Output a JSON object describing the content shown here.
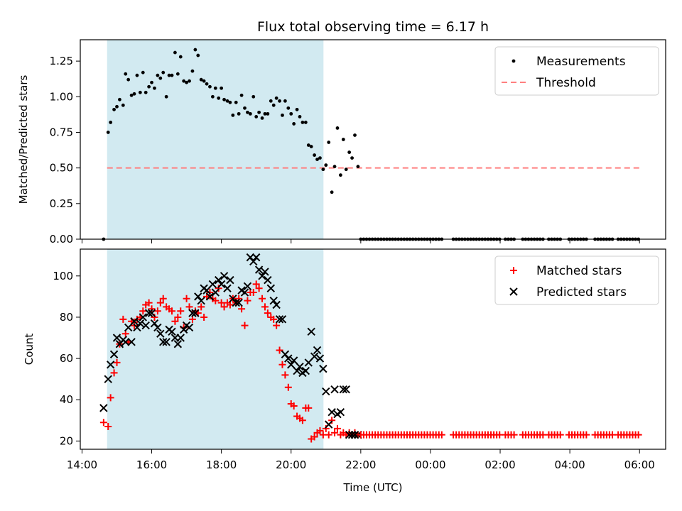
{
  "chart_data": {
    "type": "scatter",
    "title": "Flux total observing time = 6.17 h",
    "xlabel": "Time (UTC)",
    "x_unit": "hours",
    "x_ticks": [
      {
        "value": 14,
        "label": "14:00"
      },
      {
        "value": 16,
        "label": "16:00"
      },
      {
        "value": 18,
        "label": "18:00"
      },
      {
        "value": 20,
        "label": "20:00"
      },
      {
        "value": 22,
        "label": "22:00"
      },
      {
        "value": 24,
        "label": "00:00"
      },
      {
        "value": 26,
        "label": "02:00"
      },
      {
        "value": 28,
        "label": "04:00"
      },
      {
        "value": 30,
        "label": "06:00"
      }
    ],
    "xlim": [
      13.95,
      30.75
    ],
    "shaded_span": {
      "start": 14.72,
      "end": 20.93,
      "color": "#add8e6"
    },
    "colors": {
      "measurements": "#000000",
      "threshold": "#ff7f7f",
      "matched": "#ff0000",
      "predicted": "#000000"
    },
    "panels": [
      {
        "ylabel": "Matched/Predicted stars",
        "ylim": [
          0,
          1.4
        ],
        "y_ticks": [
          {
            "value": 0,
            "label": "0.00"
          },
          {
            "value": 0.25,
            "label": "0.25"
          },
          {
            "value": 0.5,
            "label": "0.50"
          },
          {
            "value": 0.75,
            "label": "0.75"
          },
          {
            "value": 1.0,
            "label": "1.00"
          },
          {
            "value": 1.25,
            "label": "1.25"
          }
        ],
        "legend": {
          "position": "top-right"
        },
        "series": [
          {
            "name": "Measurements",
            "marker": "dot",
            "x": [
              14.62,
              14.75,
              14.82,
              14.92,
              15.0,
              15.08,
              15.18,
              15.25,
              15.33,
              15.42,
              15.5,
              15.58,
              15.67,
              15.75,
              15.83,
              15.92,
              16.0,
              16.08,
              16.17,
              16.25,
              16.33,
              16.42,
              16.5,
              16.58,
              16.67,
              16.75,
              16.83,
              16.92,
              17.0,
              17.08,
              17.17,
              17.25,
              17.33,
              17.42,
              17.5,
              17.58,
              17.67,
              17.75,
              17.83,
              17.92,
              18.0,
              18.08,
              18.17,
              18.25,
              18.33,
              18.42,
              18.5,
              18.58,
              18.67,
              18.75,
              18.83,
              18.92,
              19.0,
              19.08,
              19.17,
              19.25,
              19.33,
              19.42,
              19.5,
              19.58,
              19.67,
              19.75,
              19.83,
              19.92,
              20.0,
              20.08,
              20.17,
              20.25,
              20.33,
              20.42,
              20.5,
              20.58,
              20.67,
              20.75,
              20.83,
              20.92,
              21.0,
              21.08,
              21.17,
              21.25,
              21.33,
              21.42,
              21.5,
              21.58,
              21.67,
              21.75,
              21.83,
              21.92
            ],
            "values": [
              0.0,
              0.75,
              0.82,
              0.91,
              0.93,
              0.98,
              0.94,
              1.16,
              1.12,
              1.01,
              1.02,
              1.15,
              1.03,
              1.17,
              1.03,
              1.07,
              1.1,
              1.06,
              1.15,
              1.13,
              1.17,
              1.0,
              1.15,
              1.15,
              1.31,
              1.16,
              1.28,
              1.11,
              1.1,
              1.11,
              1.18,
              1.33,
              1.29,
              1.12,
              1.11,
              1.09,
              1.07,
              1.0,
              1.06,
              0.99,
              1.06,
              0.98,
              0.97,
              0.96,
              0.87,
              0.96,
              0.88,
              1.01,
              0.92,
              0.89,
              0.88,
              1.0,
              0.86,
              0.89,
              0.85,
              0.88,
              0.88,
              0.97,
              0.94,
              0.99,
              0.97,
              0.87,
              0.97,
              0.92,
              0.88,
              0.81,
              0.91,
              0.86,
              0.82,
              0.82,
              0.66,
              0.65,
              0.59,
              0.56,
              0.57,
              0.49,
              0.52,
              0.68,
              0.33,
              0.51,
              0.78,
              0.45,
              0.7,
              0.49,
              0.61,
              0.57,
              0.73,
              0.51
            ]
          },
          {
            "name": "Threshold",
            "marker": "dashed-line",
            "x": [
              14.72,
              30.0
            ],
            "values": [
              0.5,
              0.5
            ]
          }
        ],
        "zero_marks": {
          "from": 22.0,
          "to": 30.0,
          "step": 0.083,
          "gaps": [
            [
              24.35,
              24.6
            ],
            [
              26.0,
              26.1
            ],
            [
              26.45,
              26.6
            ],
            [
              27.25,
              27.35
            ],
            [
              27.75,
              27.95
            ],
            [
              28.55,
              28.65
            ],
            [
              29.25,
              29.35
            ]
          ]
        }
      },
      {
        "ylabel": "Count",
        "ylim": [
          16,
          113
        ],
        "y_ticks": [
          {
            "value": 20,
            "label": "20"
          },
          {
            "value": 40,
            "label": "40"
          },
          {
            "value": 60,
            "label": "60"
          },
          {
            "value": 80,
            "label": "80"
          },
          {
            "value": 100,
            "label": "100"
          }
        ],
        "legend": {
          "position": "top-right"
        },
        "series": [
          {
            "name": "Matched stars",
            "marker": "plus",
            "x": [
              14.62,
              14.75,
              14.82,
              14.92,
              15.0,
              15.08,
              15.18,
              15.25,
              15.33,
              15.42,
              15.5,
              15.58,
              15.67,
              15.75,
              15.83,
              15.92,
              16.0,
              16.08,
              16.17,
              16.25,
              16.33,
              16.42,
              16.5,
              16.58,
              16.67,
              16.75,
              16.83,
              16.92,
              17.0,
              17.08,
              17.17,
              17.25,
              17.33,
              17.42,
              17.5,
              17.58,
              17.67,
              17.75,
              17.83,
              17.92,
              18.0,
              18.08,
              18.17,
              18.25,
              18.33,
              18.42,
              18.5,
              18.58,
              18.67,
              18.75,
              18.83,
              18.92,
              19.0,
              19.08,
              19.17,
              19.25,
              19.33,
              19.42,
              19.5,
              19.58,
              19.67,
              19.75,
              19.83,
              19.92,
              20.0,
              20.08,
              20.17,
              20.25,
              20.33,
              20.42,
              20.5,
              20.58,
              20.67,
              20.75,
              20.83,
              20.92,
              21.0,
              21.08,
              21.17,
              21.25,
              21.33,
              21.42,
              21.5,
              21.58,
              21.67,
              21.75,
              21.83,
              21.92
            ],
            "values": [
              29,
              27,
              41,
              53,
              58,
              67,
              79,
              72,
              68,
              78,
              76,
              79,
              80,
              83,
              86,
              87,
              84,
              80,
              83,
              87,
              89,
              85,
              84,
              83,
              78,
              80,
              83,
              75,
              89,
              85,
              79,
              83,
              82,
              85,
              80,
              90,
              92,
              89,
              88,
              94,
              87,
              85,
              87,
              86,
              89,
              87,
              89,
              84,
              76,
              88,
              92,
              92,
              96,
              94,
              89,
              85,
              82,
              80,
              79,
              76,
              64,
              57,
              52,
              46,
              38,
              37,
              32,
              31,
              30,
              36,
              36,
              21,
              22,
              24,
              25,
              23,
              26,
              23,
              30,
              24,
              26,
              23,
              24,
              23,
              24,
              23,
              24,
              23
            ]
          },
          {
            "name": "Predicted stars",
            "marker": "x",
            "x": [
              14.62,
              14.75,
              14.82,
              14.92,
              15.0,
              15.08,
              15.18,
              15.25,
              15.33,
              15.42,
              15.5,
              15.58,
              15.67,
              15.75,
              15.83,
              15.92,
              16.0,
              16.08,
              16.17,
              16.25,
              16.33,
              16.42,
              16.5,
              16.58,
              16.67,
              16.75,
              16.83,
              16.92,
              17.0,
              17.08,
              17.17,
              17.25,
              17.33,
              17.42,
              17.5,
              17.58,
              17.67,
              17.75,
              17.83,
              17.92,
              18.0,
              18.08,
              18.17,
              18.25,
              18.33,
              18.42,
              18.5,
              18.58,
              18.67,
              18.75,
              18.83,
              18.92,
              19.0,
              19.08,
              19.17,
              19.25,
              19.33,
              19.42,
              19.5,
              19.58,
              19.67,
              19.75,
              19.83,
              19.92,
              20.0,
              20.08,
              20.17,
              20.25,
              20.33,
              20.42,
              20.5,
              20.58,
              20.67,
              20.75,
              20.83,
              20.92,
              21.0,
              21.08,
              21.17,
              21.25,
              21.33,
              21.42,
              21.5,
              21.58,
              21.67,
              21.75,
              21.83,
              21.92
            ],
            "values": [
              36,
              50,
              57,
              62,
              70,
              67,
              69,
              68,
              75,
              68,
              78,
              75,
              77,
              80,
              76,
              82,
              82,
              77,
              75,
              72,
              68,
              68,
              74,
              73,
              70,
              67,
              70,
              74,
              76,
              75,
              82,
              82,
              90,
              88,
              94,
              93,
              90,
              96,
              92,
              98,
              96,
              100,
              94,
              98,
              89,
              87,
              87,
              93,
              92,
              95,
              109,
              107,
              109,
              103,
              100,
              102,
              98,
              94,
              88,
              86,
              79,
              79,
              62,
              60,
              57,
              59,
              54,
              56,
              53,
              54,
              58,
              73,
              61,
              64,
              60,
              55,
              44,
              28,
              34,
              45,
              33,
              34,
              45,
              45,
              23,
              23,
              23,
              23
            ]
          }
        ],
        "baseline_marks": {
          "value": 23,
          "from": 22.0,
          "to": 30.0,
          "step": 0.083,
          "gaps": [
            [
              24.35,
              24.6
            ],
            [
              26.0,
              26.1
            ],
            [
              26.45,
              26.6
            ],
            [
              27.25,
              27.35
            ],
            [
              27.75,
              27.95
            ],
            [
              28.55,
              28.65
            ],
            [
              29.25,
              29.35
            ]
          ]
        }
      }
    ]
  }
}
